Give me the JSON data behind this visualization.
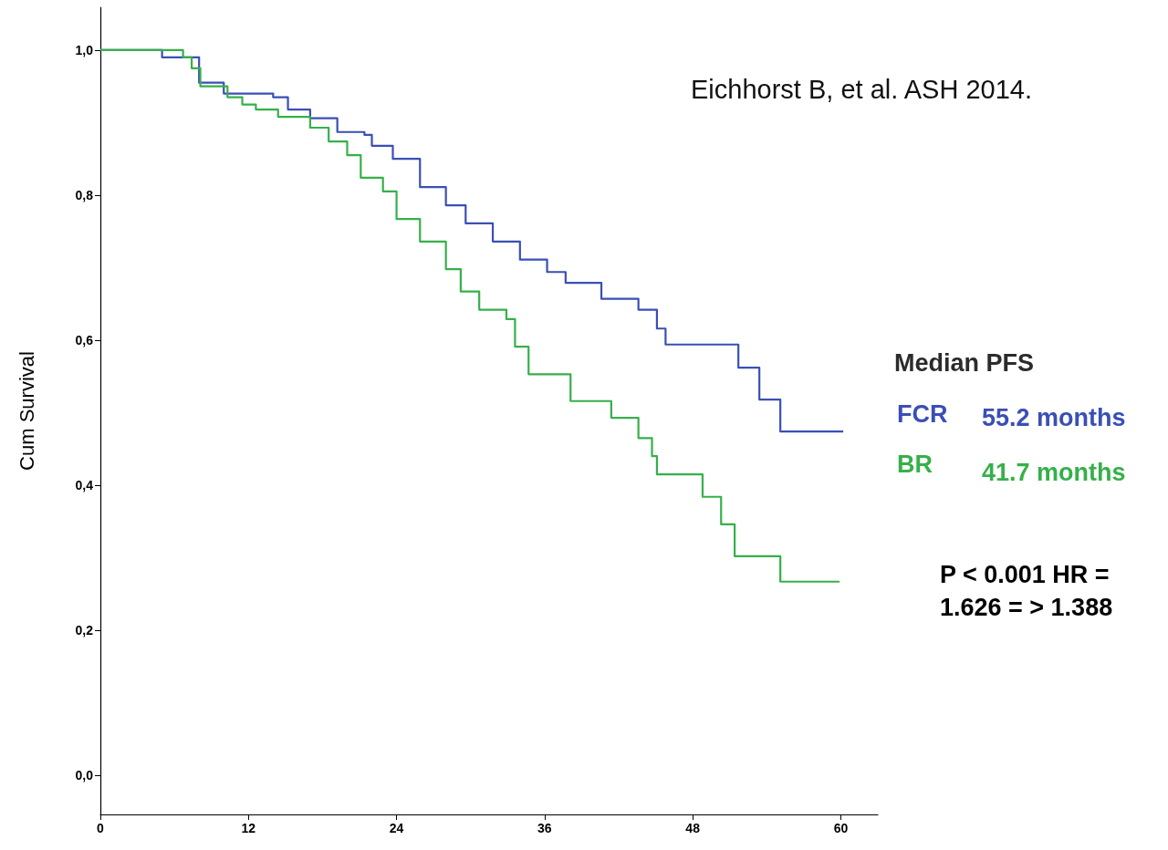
{
  "chart_data": {
    "type": "step",
    "ylabel": "Cum Survival",
    "xlim": [
      0,
      63
    ],
    "ylim": [
      -0.054,
      1.059
    ],
    "xticks": [
      0,
      12,
      24,
      36,
      48,
      60
    ],
    "yticks": [
      {
        "value": 0,
        "label": "0,0"
      },
      {
        "value": 0.2,
        "label": "0,2"
      },
      {
        "value": 0.4,
        "label": "0,4"
      },
      {
        "value": 0.6,
        "label": "0,6"
      },
      {
        "value": 0.8,
        "label": "0,8"
      },
      {
        "value": 1,
        "label": "1,0"
      }
    ],
    "grid": false,
    "legend": "right",
    "marker": "none",
    "line_style": "solid",
    "series": [
      {
        "name": "FCR",
        "color": "#3a4fb5",
        "x": [
          0,
          5,
          8,
          10,
          14,
          15.2,
          17,
          19.2,
          21.4,
          22,
          23.7,
          25.9,
          28,
          29.6,
          31.8,
          34,
          36.2,
          37.7,
          40.6,
          43.6,
          45.1,
          45.8,
          51.7,
          53.4,
          55.1,
          60.2
        ],
        "values": [
          1.0,
          0.99,
          0.955,
          0.94,
          0.935,
          0.918,
          0.906,
          0.887,
          0.883,
          0.868,
          0.85,
          0.811,
          0.786,
          0.761,
          0.736,
          0.711,
          0.694,
          0.679,
          0.657,
          0.642,
          0.616,
          0.594,
          0.562,
          0.518,
          0.474,
          0.474
        ]
      },
      {
        "name": "BR",
        "color": "#36b04a",
        "x": [
          0,
          6.7,
          7.4,
          8.1,
          10.3,
          11.5,
          12.6,
          14.4,
          17,
          18.5,
          20,
          21.1,
          22.9,
          24,
          25.9,
          28,
          29.2,
          30.7,
          32.9,
          33.6,
          34.7,
          38.1,
          41.4,
          43.6,
          44.7,
          45.1,
          48.8,
          50.3,
          51.4,
          55.1,
          59.9
        ],
        "values": [
          1.0,
          0.99,
          0.975,
          0.95,
          0.935,
          0.925,
          0.918,
          0.908,
          0.893,
          0.874,
          0.855,
          0.824,
          0.805,
          0.767,
          0.736,
          0.698,
          0.667,
          0.642,
          0.629,
          0.591,
          0.553,
          0.516,
          0.493,
          0.465,
          0.44,
          0.415,
          0.384,
          0.346,
          0.302,
          0.267,
          0.267
        ]
      }
    ],
    "annotations": [
      "Eichhorst B, et al. ASH 2014.",
      "Median PFS",
      "55.2 months",
      "41.7 months",
      "P < 0.001 HR = 1.626 = > 1.388"
    ]
  }
}
